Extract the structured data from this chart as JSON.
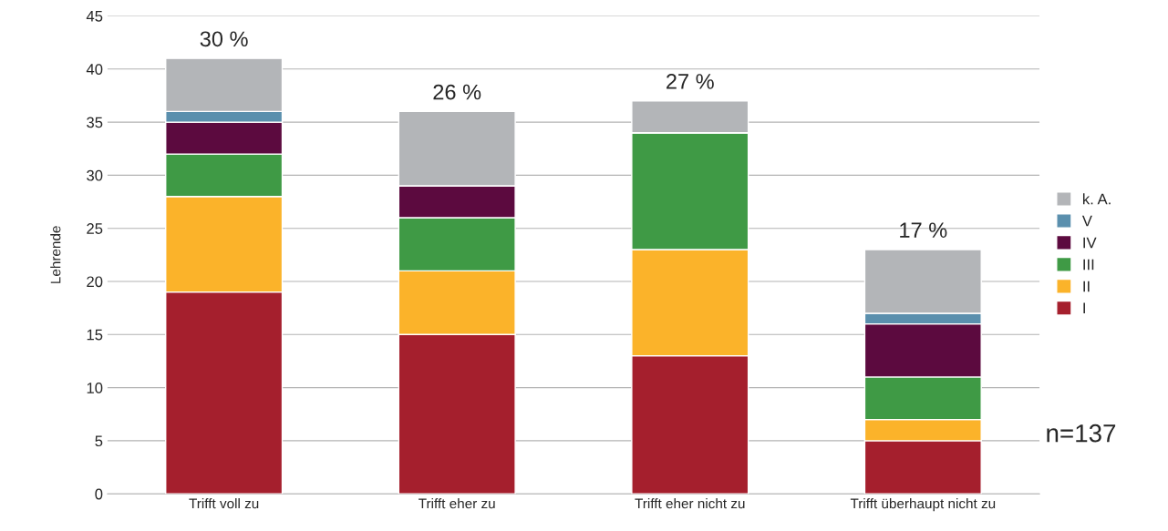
{
  "chart_data": {
    "type": "bar",
    "stacked": true,
    "ylabel": "Lehrende",
    "categories": [
      "Trifft voll zu",
      "Trifft eher zu",
      "Trifft eher nicht zu",
      "Trifft überhaupt nicht zu"
    ],
    "series": [
      {
        "name": "I",
        "color": "#a51f2d",
        "values": [
          19,
          15,
          13,
          5
        ]
      },
      {
        "name": "II",
        "color": "#fbb32a",
        "values": [
          9,
          6,
          10,
          2
        ]
      },
      {
        "name": "III",
        "color": "#3f9a45",
        "values": [
          4,
          5,
          11,
          4
        ]
      },
      {
        "name": "IV",
        "color": "#5c0a3f",
        "values": [
          3,
          3,
          0,
          5
        ]
      },
      {
        "name": "V",
        "color": "#5a8fad",
        "values": [
          1,
          0,
          0,
          1
        ]
      },
      {
        "name": "k. A.",
        "color": "#b3b5b8",
        "values": [
          5,
          7,
          3,
          6
        ]
      }
    ],
    "ylim": [
      0,
      45
    ],
    "yticks": [
      0,
      5,
      10,
      15,
      20,
      25,
      30,
      35,
      40,
      45
    ],
    "grid": "y",
    "legend": "right",
    "annotations": [
      {
        "text": "30 %",
        "x": "Trifft voll zu",
        "y": 41
      },
      {
        "text": "26 %",
        "x": "Trifft eher zu",
        "y": 36
      },
      {
        "text": "27 %",
        "x": "Trifft eher nicht zu",
        "y": 37
      },
      {
        "text": "17 %",
        "x": "Trifft überhaupt nicht zu",
        "y": 23
      },
      "n=137"
    ]
  }
}
